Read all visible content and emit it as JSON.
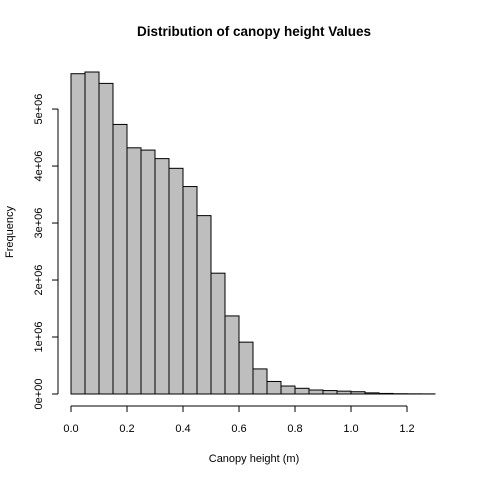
{
  "chart_data": {
    "type": "bar",
    "title": "Distribution of canopy height Values",
    "xlabel": "Canopy height (m)",
    "ylabel": "Frequency",
    "bar_color": "#bebebe",
    "bin_width": 0.05,
    "bin_start": 0.0,
    "values": [
      5620000,
      5650000,
      5450000,
      4730000,
      4320000,
      4280000,
      4130000,
      3960000,
      3640000,
      3130000,
      2120000,
      1370000,
      910000,
      440000,
      220000,
      140000,
      100000,
      70000,
      60000,
      50000,
      40000,
      20000,
      10000,
      5000,
      3000,
      2000
    ],
    "xlim": [
      0.0,
      1.3
    ],
    "ylim": [
      0,
      5650000
    ],
    "x_ticks": [
      0.0,
      0.2,
      0.4,
      0.6,
      0.8,
      1.0,
      1.2
    ],
    "x_tick_labels": [
      "0.0",
      "0.2",
      "0.4",
      "0.6",
      "0.8",
      "1.0",
      "1.2"
    ],
    "y_ticks": [
      0,
      1000000,
      2000000,
      3000000,
      4000000,
      5000000
    ],
    "y_tick_labels": [
      "0e+00",
      "1e+06",
      "2e+06",
      "3e+06",
      "4e+06",
      "5e+06"
    ],
    "grid": false,
    "legend": "none"
  }
}
